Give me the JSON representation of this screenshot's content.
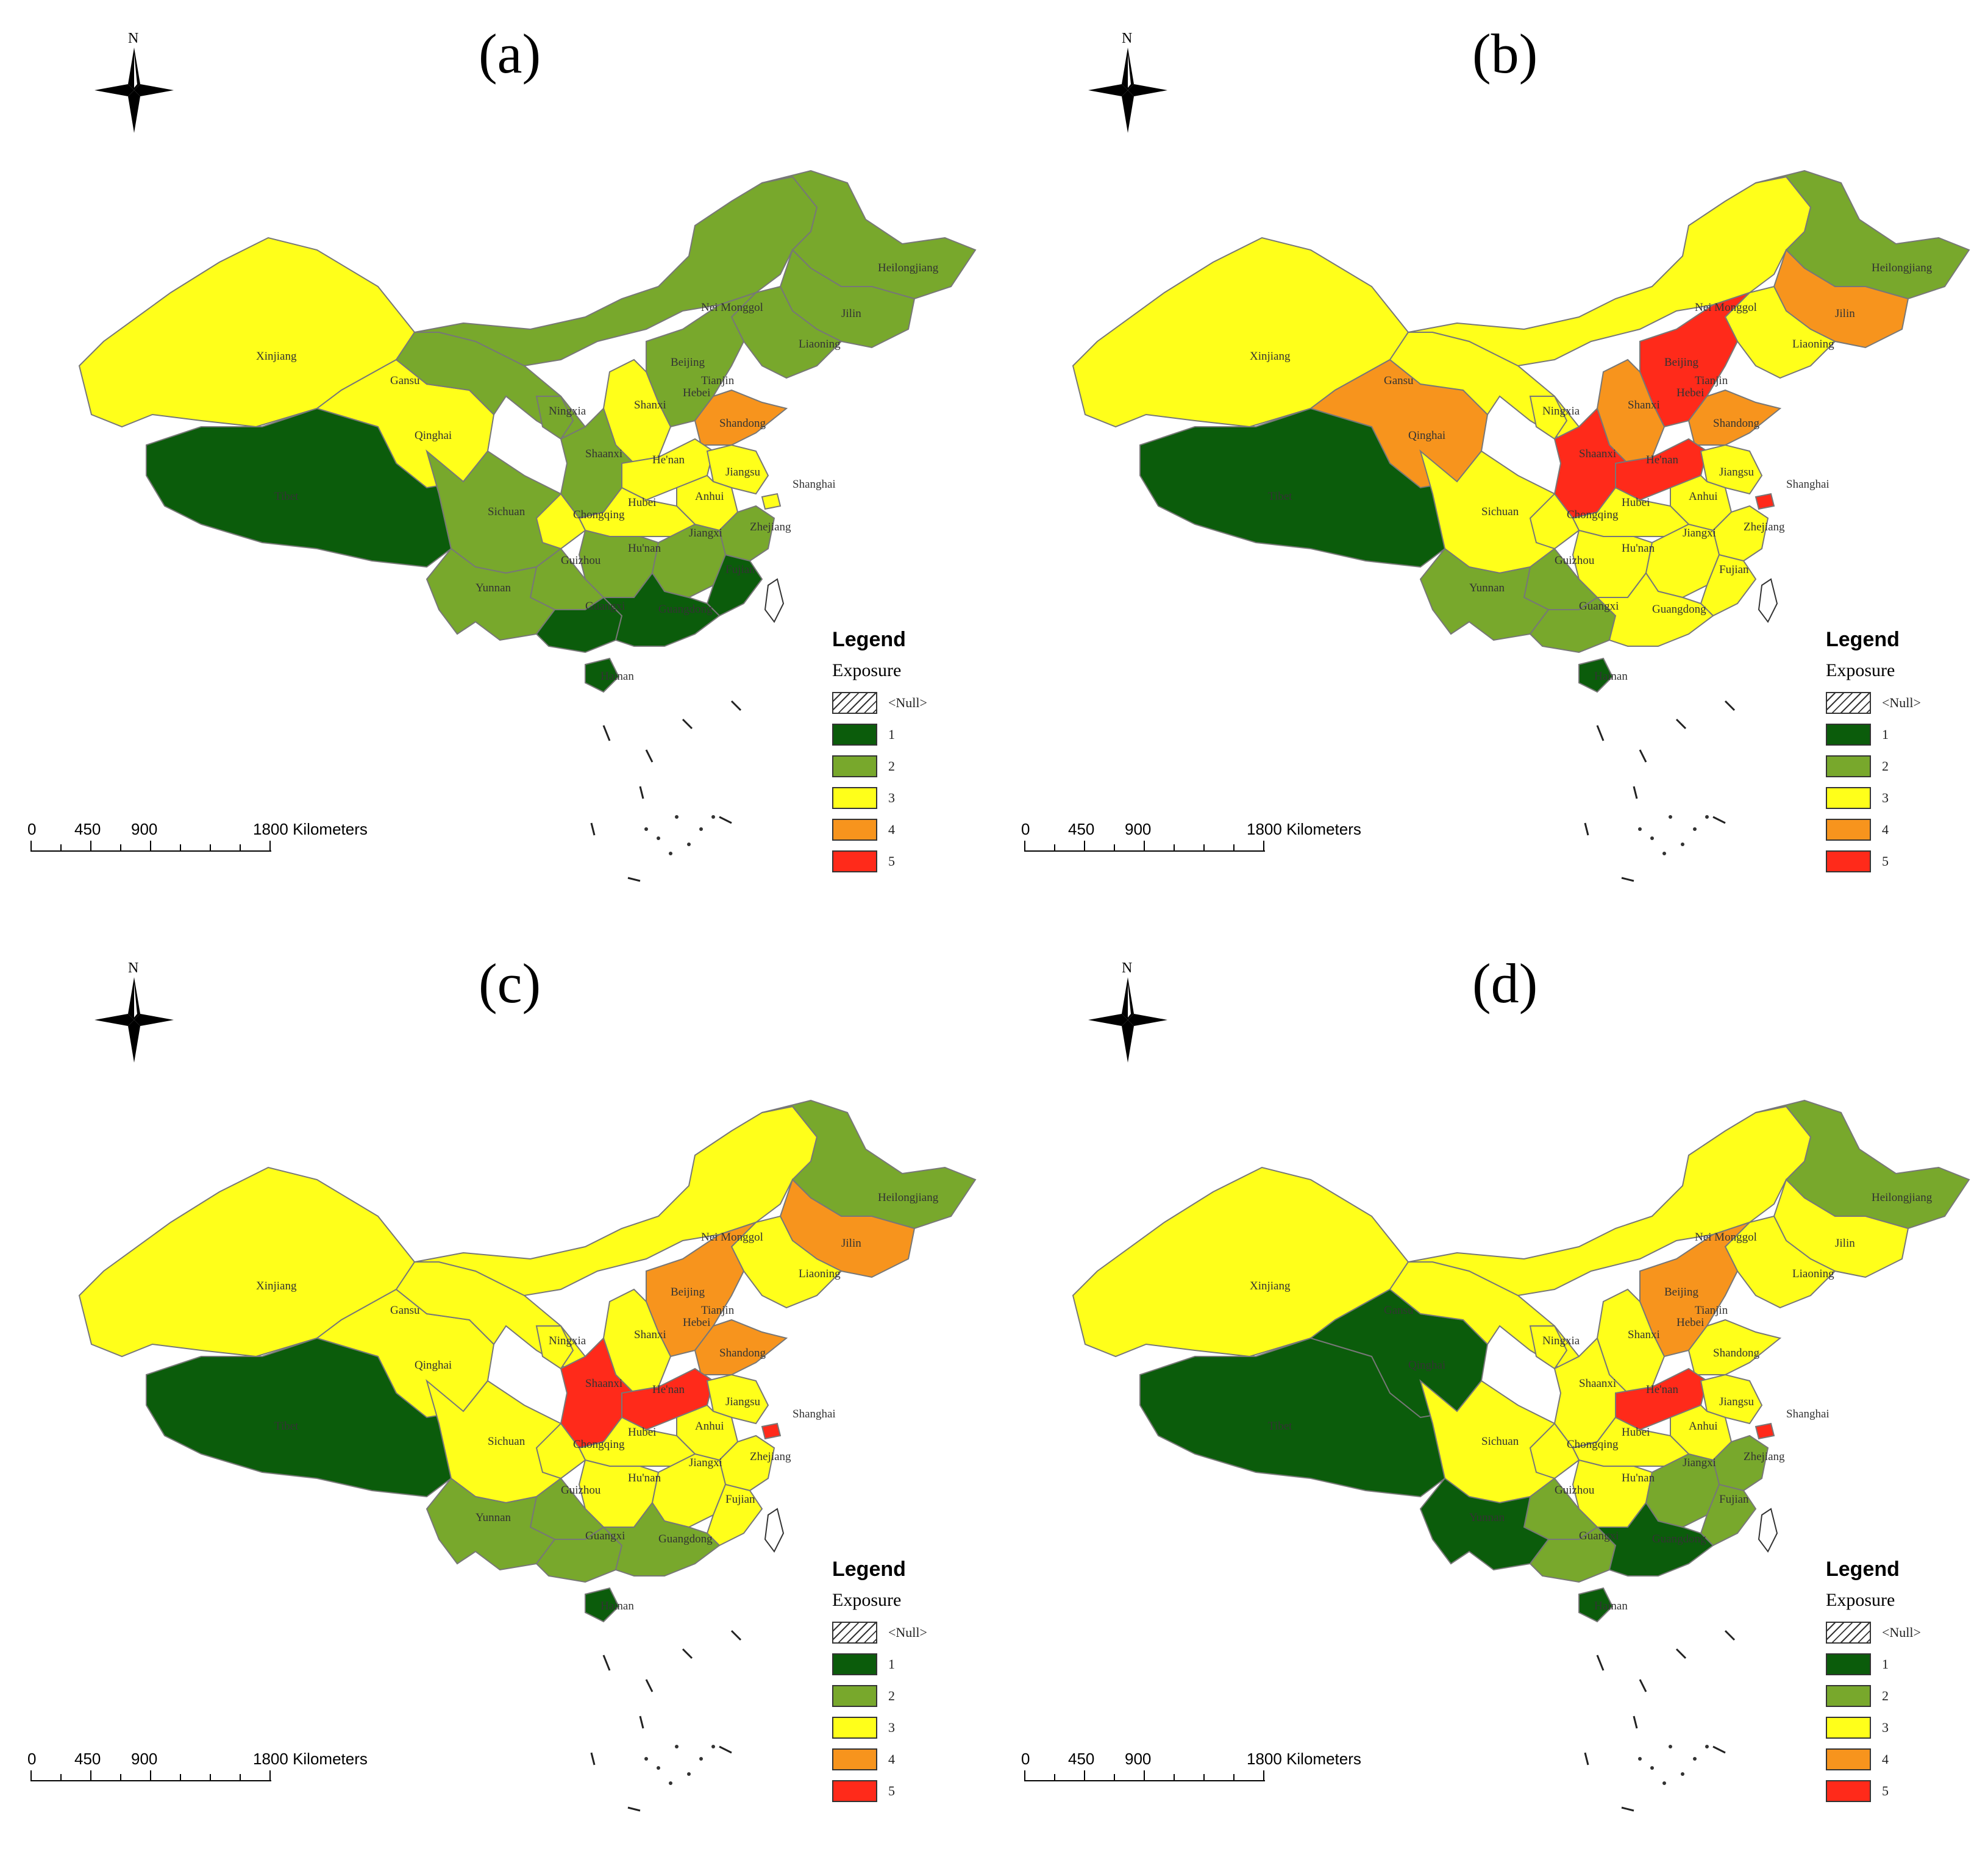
{
  "colors": {
    "1": "#0b5c0b",
    "2": "#78a82c",
    "3": "#ffff1a",
    "4": "#f7941d",
    "5": "#ff2a1a",
    "border": "#777777"
  },
  "legend": {
    "title": "Legend",
    "field": "Exposure",
    "null_label": "<Null>",
    "classes": [
      "1",
      "2",
      "3",
      "4",
      "5"
    ]
  },
  "scalebar": {
    "labels": [
      "0",
      "450",
      "900",
      "1800 Kilometers"
    ]
  },
  "north_label": "N",
  "province_labels": {
    "Xinjiang": "Xinjiang",
    "Tibet": "Tibet",
    "Qinghai": "Qinghai",
    "Gansu": "Gansu",
    "NeiMonggol": "Nei Monggol",
    "Heilongjiang": "Heilongjiang",
    "Jilin": "Jilin",
    "Liaoning": "Liaoning",
    "Beijing": "Beijing",
    "Tianjin": "Tianjin",
    "Hebei": "Hebei",
    "Shanxi": "Shanxi",
    "Shandong": "Shandong",
    "Ningxia": "Ningxia",
    "Shaanxi": "Shaanxi",
    "Henan": "He'nan",
    "Jiangsu": "Jiangsu",
    "Shanghai": "Shanghai",
    "Anhui": "Anhui",
    "Hubei": "Hubei",
    "Sichuan": "Sichuan",
    "Chongqing": "Chongqing",
    "Zhejiang": "Zhejiang",
    "Hunan": "Hu'nan",
    "Jiangxi": "Jiangxi",
    "Guizhou": "Guizhou",
    "Yunnan": "Yunnan",
    "Fujian": "Fujian",
    "Guangxi": "Guangxi",
    "Guangdong": "Guangdong",
    "Hainan": "Hainan"
  },
  "panels": [
    {
      "label": "(a)",
      "exposure": {
        "Xinjiang": 3,
        "Tibet": 1,
        "Qinghai": 3,
        "Gansu": 2,
        "NeiMonggol": 2,
        "Heilongjiang": 2,
        "Jilin": 2,
        "Liaoning": 2,
        "Beijing": 4,
        "Tianjin": 3,
        "Hebei": 2,
        "Shanxi": 3,
        "Shandong": 4,
        "Ningxia": 2,
        "Shaanxi": 2,
        "Henan": 3,
        "Jiangsu": 3,
        "Shanghai": 3,
        "Anhui": 3,
        "Hubei": 3,
        "Sichuan": 2,
        "Chongqing": 3,
        "Zhejiang": 2,
        "Hunan": 2,
        "Jiangxi": 2,
        "Guizhou": 2,
        "Yunnan": 2,
        "Fujian": 1,
        "Guangxi": 1,
        "Guangdong": 1,
        "Hainan": 1
      }
    },
    {
      "label": "(b)",
      "exposure": {
        "Xinjiang": 3,
        "Tibet": 1,
        "Qinghai": 4,
        "Gansu": 3,
        "NeiMonggol": 3,
        "Heilongjiang": 2,
        "Jilin": 4,
        "Liaoning": 3,
        "Beijing": 5,
        "Tianjin": 5,
        "Hebei": 5,
        "Shanxi": 4,
        "Shandong": 4,
        "Ningxia": 3,
        "Shaanxi": 5,
        "Henan": 5,
        "Jiangsu": 3,
        "Shanghai": 5,
        "Anhui": 3,
        "Hubei": 3,
        "Sichuan": 3,
        "Chongqing": 3,
        "Zhejiang": 3,
        "Hunan": 3,
        "Jiangxi": 3,
        "Guizhou": 2,
        "Yunnan": 2,
        "Fujian": 3,
        "Guangxi": 2,
        "Guangdong": 3,
        "Hainan": 1
      }
    },
    {
      "label": "(c)",
      "exposure": {
        "Xinjiang": 3,
        "Tibet": 1,
        "Qinghai": 3,
        "Gansu": 3,
        "NeiMonggol": 3,
        "Heilongjiang": 2,
        "Jilin": 4,
        "Liaoning": 3,
        "Beijing": 4,
        "Tianjin": 4,
        "Hebei": 4,
        "Shanxi": 3,
        "Shandong": 4,
        "Ningxia": 3,
        "Shaanxi": 5,
        "Henan": 5,
        "Jiangsu": 3,
        "Shanghai": 5,
        "Anhui": 3,
        "Hubei": 3,
        "Sichuan": 3,
        "Chongqing": 3,
        "Zhejiang": 3,
        "Hunan": 3,
        "Jiangxi": 3,
        "Guizhou": 2,
        "Yunnan": 2,
        "Fujian": 3,
        "Guangxi": 2,
        "Guangdong": 2,
        "Hainan": 1
      }
    },
    {
      "label": "(d)",
      "exposure": {
        "Xinjiang": 3,
        "Tibet": 1,
        "Qinghai": 1,
        "Gansu": 3,
        "NeiMonggol": 3,
        "Heilongjiang": 2,
        "Jilin": 3,
        "Liaoning": 3,
        "Beijing": 4,
        "Tianjin": 3,
        "Hebei": 4,
        "Shanxi": 3,
        "Shandong": 3,
        "Ningxia": 3,
        "Shaanxi": 3,
        "Henan": 5,
        "Jiangsu": 3,
        "Shanghai": 5,
        "Anhui": 3,
        "Hubei": 3,
        "Sichuan": 3,
        "Chongqing": 3,
        "Zhejiang": 2,
        "Hunan": 3,
        "Jiangxi": 2,
        "Guizhou": 2,
        "Yunnan": 1,
        "Fujian": 2,
        "Guangxi": 2,
        "Guangdong": 1,
        "Hainan": 1
      }
    }
  ]
}
